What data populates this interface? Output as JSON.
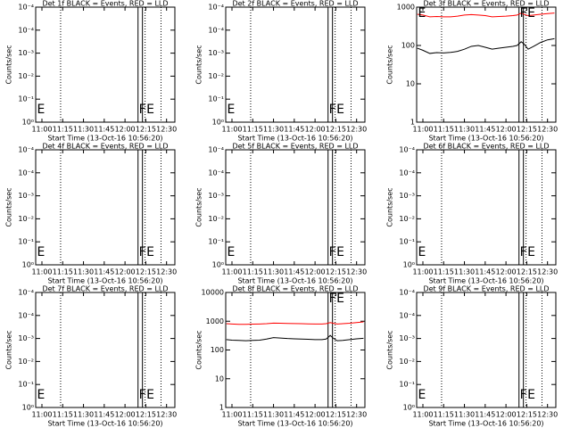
{
  "chart_data": [
    {
      "type": "empty",
      "title": "Det 1f BLACK = Events, RED = LLD",
      "xlabel": "Start Time (13-Oct-16 10:56:20)",
      "ylabel": "Counts/sec",
      "xlim": [
        -4.5,
        96
      ],
      "xticks": [
        {
          "value": 0,
          "label": "11:00"
        },
        {
          "value": 15,
          "label": "11:15"
        },
        {
          "value": 30,
          "label": "11:30"
        },
        {
          "value": 45,
          "label": "11:45"
        },
        {
          "value": 60,
          "label": "12:00"
        },
        {
          "value": 75,
          "label": "12:15"
        },
        {
          "value": 90,
          "label": "12:30"
        }
      ],
      "ylim": [
        0,
        5
      ],
      "yticks": [
        {
          "value": 0,
          "label": "10⁰"
        },
        {
          "value": 1,
          "label": "10⁻¹"
        },
        {
          "value": 2,
          "label": "10⁻²"
        },
        {
          "value": 3,
          "label": "10⁻³"
        },
        {
          "value": 4,
          "label": "10⁻⁴"
        },
        {
          "value": 5,
          "label": "10⁻⁴"
        }
      ],
      "dotted_x": [
        13.5,
        74.5,
        86
      ],
      "solid_x": [
        69.4,
        72.6
      ],
      "annotations": [
        {
          "text": "E",
          "x": -3.5
        },
        {
          "text": "F",
          "x": 70
        },
        {
          "text": "E",
          "x": 75.5
        }
      ]
    },
    {
      "type": "empty",
      "title": "Det 2f BLACK = Events, RED = LLD",
      "xlabel": "Start Time (13-Oct-16 10:56:20)",
      "ylabel": "Counts/sec",
      "xlim": [
        -4.5,
        96
      ],
      "xticks": [
        {
          "value": 0,
          "label": "11:00"
        },
        {
          "value": 15,
          "label": "11:15"
        },
        {
          "value": 30,
          "label": "11:30"
        },
        {
          "value": 45,
          "label": "11:45"
        },
        {
          "value": 60,
          "label": "12:00"
        },
        {
          "value": 75,
          "label": "12:15"
        },
        {
          "value": 90,
          "label": "12:30"
        }
      ],
      "ylim": [
        0,
        5
      ],
      "yticks": [
        {
          "value": 0,
          "label": "10⁰"
        },
        {
          "value": 1,
          "label": "10⁻¹"
        },
        {
          "value": 2,
          "label": "10⁻²"
        },
        {
          "value": 3,
          "label": "10⁻³"
        },
        {
          "value": 4,
          "label": "10⁻⁴"
        },
        {
          "value": 5,
          "label": "10⁻⁴"
        }
      ],
      "dotted_x": [
        13.5,
        74.5,
        86
      ],
      "solid_x": [
        69.4,
        72.6
      ],
      "annotations": [
        {
          "text": "E",
          "x": -3.5
        },
        {
          "text": "F",
          "x": 70
        },
        {
          "text": "E",
          "x": 75.5
        }
      ]
    },
    {
      "type": "line",
      "title": "Det 3f BLACK = Events, RED = LLD",
      "xlabel": "Start Time (13-Oct-16 10:56:20)",
      "ylabel": "Counts/sec",
      "xlim": [
        -4.5,
        96
      ],
      "xticks": [
        {
          "value": 0,
          "label": "11:00"
        },
        {
          "value": 15,
          "label": "11:15"
        },
        {
          "value": 30,
          "label": "11:30"
        },
        {
          "value": 45,
          "label": "11:45"
        },
        {
          "value": 60,
          "label": "12:00"
        },
        {
          "value": 75,
          "label": "12:15"
        },
        {
          "value": 90,
          "label": "12:30"
        }
      ],
      "log_y": true,
      "ylim": [
        1,
        1000
      ],
      "yticks": [
        1,
        10,
        100,
        1000
      ],
      "dotted_x": [
        13.5,
        74.5,
        86
      ],
      "solid_x": [
        69.4,
        72.6
      ],
      "annotations": [
        {
          "text": "E",
          "x": -3.5
        },
        {
          "text": "F",
          "x": 70
        },
        {
          "text": "E",
          "x": 75.5
        }
      ],
      "x": [
        -4,
        0,
        5,
        10,
        15,
        20,
        25,
        30,
        35,
        40,
        45,
        50,
        55,
        60,
        65,
        68,
        71,
        73,
        76,
        80,
        85,
        90,
        95
      ],
      "series": [
        {
          "name": "Events",
          "color": "#000000",
          "values": [
            85,
            75,
            62,
            65,
            64,
            66,
            70,
            80,
            95,
            100,
            90,
            80,
            85,
            90,
            95,
            100,
            125,
            110,
            80,
            95,
            120,
            140,
            150
          ]
        },
        {
          "name": "LLD",
          "color": "#ff0000",
          "values": [
            650,
            620,
            560,
            570,
            560,
            560,
            580,
            620,
            640,
            620,
            600,
            560,
            570,
            580,
            600,
            620,
            700,
            650,
            600,
            620,
            650,
            680,
            700
          ]
        }
      ]
    },
    {
      "type": "empty",
      "title": "Det 4f BLACK = Events, RED = LLD",
      "xlabel": "Start Time (13-Oct-16 10:56:20)",
      "ylabel": "Counts/sec",
      "xlim": [
        -4.5,
        96
      ],
      "xticks": [
        {
          "value": 0,
          "label": "11:00"
        },
        {
          "value": 15,
          "label": "11:15"
        },
        {
          "value": 30,
          "label": "11:30"
        },
        {
          "value": 45,
          "label": "11:45"
        },
        {
          "value": 60,
          "label": "12:00"
        },
        {
          "value": 75,
          "label": "12:15"
        },
        {
          "value": 90,
          "label": "12:30"
        }
      ],
      "ylim": [
        0,
        5
      ],
      "yticks": [
        {
          "value": 0,
          "label": "10⁰"
        },
        {
          "value": 1,
          "label": "10⁻¹"
        },
        {
          "value": 2,
          "label": "10⁻²"
        },
        {
          "value": 3,
          "label": "10⁻³"
        },
        {
          "value": 4,
          "label": "10⁻⁴"
        },
        {
          "value": 5,
          "label": "10⁻⁴"
        }
      ],
      "dotted_x": [
        13.5,
        74.5,
        86
      ],
      "solid_x": [
        69.4,
        72.6
      ],
      "annotations": [
        {
          "text": "E",
          "x": -3.5
        },
        {
          "text": "F",
          "x": 70
        },
        {
          "text": "E",
          "x": 75.5
        }
      ]
    },
    {
      "type": "empty",
      "title": "Det 5f BLACK = Events, RED = LLD",
      "xlabel": "Start Time (13-Oct-16 10:56:20)",
      "ylabel": "Counts/sec",
      "xlim": [
        -4.5,
        96
      ],
      "xticks": [
        {
          "value": 0,
          "label": "11:00"
        },
        {
          "value": 15,
          "label": "11:15"
        },
        {
          "value": 30,
          "label": "11:30"
        },
        {
          "value": 45,
          "label": "11:45"
        },
        {
          "value": 60,
          "label": "12:00"
        },
        {
          "value": 75,
          "label": "12:15"
        },
        {
          "value": 90,
          "label": "12:30"
        }
      ],
      "ylim": [
        0,
        5
      ],
      "yticks": [
        {
          "value": 0,
          "label": "10⁰"
        },
        {
          "value": 1,
          "label": "10⁻¹"
        },
        {
          "value": 2,
          "label": "10⁻²"
        },
        {
          "value": 3,
          "label": "10⁻³"
        },
        {
          "value": 4,
          "label": "10⁻⁴"
        },
        {
          "value": 5,
          "label": "10⁻⁴"
        }
      ],
      "dotted_x": [
        13.5,
        74.5,
        86
      ],
      "solid_x": [
        69.4,
        72.6
      ],
      "annotations": [
        {
          "text": "E",
          "x": -3.5
        },
        {
          "text": "F",
          "x": 70
        },
        {
          "text": "E",
          "x": 75.5
        }
      ]
    },
    {
      "type": "empty",
      "title": "Det 6f BLACK = Events, RED = LLD",
      "xlabel": "Start Time (13-Oct-16 10:56:20)",
      "ylabel": "Counts/sec",
      "xlim": [
        -4.5,
        96
      ],
      "xticks": [
        {
          "value": 0,
          "label": "11:00"
        },
        {
          "value": 15,
          "label": "11:15"
        },
        {
          "value": 30,
          "label": "11:30"
        },
        {
          "value": 45,
          "label": "11:45"
        },
        {
          "value": 60,
          "label": "12:00"
        },
        {
          "value": 75,
          "label": "12:15"
        },
        {
          "value": 90,
          "label": "12:30"
        }
      ],
      "ylim": [
        0,
        5
      ],
      "yticks": [
        {
          "value": 0,
          "label": "10⁰"
        },
        {
          "value": 1,
          "label": "10⁻¹"
        },
        {
          "value": 2,
          "label": "10⁻²"
        },
        {
          "value": 3,
          "label": "10⁻³"
        },
        {
          "value": 4,
          "label": "10⁻⁴"
        },
        {
          "value": 5,
          "label": "10⁻⁴"
        }
      ],
      "dotted_x": [
        13.5,
        74.5,
        86
      ],
      "solid_x": [
        69.4,
        72.6
      ],
      "annotations": [
        {
          "text": "E",
          "x": -3.5
        },
        {
          "text": "F",
          "x": 70
        },
        {
          "text": "E",
          "x": 75.5
        }
      ]
    },
    {
      "type": "empty",
      "title": "Det 7f BLACK = Events, RED = LLD",
      "xlabel": "Start Time (13-Oct-16 10:56:20)",
      "ylabel": "Counts/sec",
      "xlim": [
        -4.5,
        96
      ],
      "xticks": [
        {
          "value": 0,
          "label": "11:00"
        },
        {
          "value": 15,
          "label": "11:15"
        },
        {
          "value": 30,
          "label": "11:30"
        },
        {
          "value": 45,
          "label": "11:45"
        },
        {
          "value": 60,
          "label": "12:00"
        },
        {
          "value": 75,
          "label": "12:15"
        },
        {
          "value": 90,
          "label": "12:30"
        }
      ],
      "ylim": [
        0,
        5
      ],
      "yticks": [
        {
          "value": 0,
          "label": "10⁰"
        },
        {
          "value": 1,
          "label": "10⁻¹"
        },
        {
          "value": 2,
          "label": "10⁻²"
        },
        {
          "value": 3,
          "label": "10⁻³"
        },
        {
          "value": 4,
          "label": "10⁻⁴"
        },
        {
          "value": 5,
          "label": "10⁻⁴"
        }
      ],
      "dotted_x": [
        13.5,
        74.5,
        86
      ],
      "solid_x": [
        69.4,
        72.6
      ],
      "annotations": [
        {
          "text": "E",
          "x": -3.5
        },
        {
          "text": "F",
          "x": 70
        },
        {
          "text": "E",
          "x": 75.5
        }
      ]
    },
    {
      "type": "line",
      "title": "Det 8f BLACK = Events, RED = LLD",
      "xlabel": "Start Time (13-Oct-16 10:56:20)",
      "ylabel": "Counts/sec",
      "xlim": [
        -4.5,
        96
      ],
      "xticks": [
        {
          "value": 0,
          "label": "11:00"
        },
        {
          "value": 15,
          "label": "11:15"
        },
        {
          "value": 30,
          "label": "11:30"
        },
        {
          "value": 45,
          "label": "11:45"
        },
        {
          "value": 60,
          "label": "12:00"
        },
        {
          "value": 75,
          "label": "12:15"
        },
        {
          "value": 90,
          "label": "12:30"
        }
      ],
      "log_y": true,
      "ylim": [
        1,
        10000
      ],
      "yticks": [
        1,
        10,
        100,
        1000,
        10000
      ],
      "dotted_x": [
        13.5,
        74.5,
        86
      ],
      "solid_x": [
        69.4,
        72.6
      ],
      "annotations": [
        {
          "text": "F",
          "x": 70
        },
        {
          "text": "E",
          "x": 75.5
        }
      ],
      "x": [
        -4,
        0,
        5,
        10,
        15,
        20,
        25,
        30,
        35,
        40,
        45,
        50,
        55,
        60,
        65,
        68,
        71,
        73,
        76,
        80,
        85,
        90,
        95
      ],
      "series": [
        {
          "name": "Events",
          "color": "#000000",
          "values": [
            230,
            220,
            215,
            210,
            215,
            220,
            240,
            270,
            260,
            250,
            245,
            240,
            235,
            230,
            230,
            240,
            320,
            260,
            210,
            215,
            230,
            245,
            255
          ]
        },
        {
          "name": "LLD",
          "color": "#ff0000",
          "values": [
            820,
            800,
            780,
            780,
            790,
            800,
            820,
            860,
            850,
            840,
            830,
            820,
            810,
            800,
            800,
            820,
            900,
            850,
            800,
            820,
            850,
            900,
            950
          ]
        }
      ]
    },
    {
      "type": "empty",
      "title": "Det 9f BLACK = Events, RED = LLD",
      "xlabel": "Start Time (13-Oct-16 10:56:20)",
      "ylabel": "Counts/sec",
      "xlim": [
        -4.5,
        96
      ],
      "xticks": [
        {
          "value": 0,
          "label": "11:00"
        },
        {
          "value": 15,
          "label": "11:15"
        },
        {
          "value": 30,
          "label": "11:30"
        },
        {
          "value": 45,
          "label": "11:45"
        },
        {
          "value": 60,
          "label": "12:00"
        },
        {
          "value": 75,
          "label": "12:15"
        },
        {
          "value": 90,
          "label": "12:30"
        }
      ],
      "ylim": [
        0,
        5
      ],
      "yticks": [
        {
          "value": 0,
          "label": "10⁰"
        },
        {
          "value": 1,
          "label": "10⁻¹"
        },
        {
          "value": 2,
          "label": "10⁻²"
        },
        {
          "value": 3,
          "label": "10⁻³"
        },
        {
          "value": 4,
          "label": "10⁻⁴"
        },
        {
          "value": 5,
          "label": "10⁻⁴"
        }
      ],
      "dotted_x": [
        13.5,
        74.5,
        86
      ],
      "solid_x": [
        69.4,
        72.6
      ],
      "annotations": [
        {
          "text": "E",
          "x": -3.5
        },
        {
          "text": "F",
          "x": 70
        },
        {
          "text": "E",
          "x": 75.5
        }
      ]
    }
  ]
}
